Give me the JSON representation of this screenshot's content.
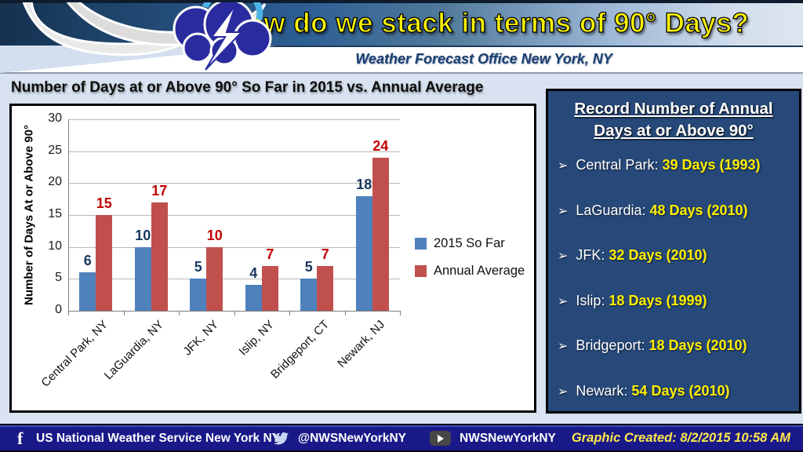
{
  "header": {
    "title": "How do we stack in terms of 90° Days?",
    "subtitle": "Weather Forecast Office New York, NY"
  },
  "chart_data": {
    "type": "bar",
    "title": "Number of Days at or Above 90° So Far in 2015 vs. Annual Average",
    "categories": [
      "Central Park, NY",
      "LaGuardia, NY",
      "JFK, NY",
      "Islip, NY",
      "Bridgeport, CT",
      "Newark, NJ"
    ],
    "series": [
      {
        "name": "2015 So Far",
        "color": "#4f81bd",
        "label_color": "#17375e",
        "values": [
          6,
          10,
          5,
          4,
          5,
          18
        ]
      },
      {
        "name": "Annual Average",
        "color": "#c0504d",
        "label_color": "#c00000",
        "values": [
          15,
          17,
          10,
          7,
          7,
          24
        ]
      }
    ],
    "xlabel": "",
    "ylabel": "Number of Days At or Above 90°",
    "ylim": [
      0,
      30
    ],
    "ytick_step": 5,
    "grid": true,
    "legend_position": "right"
  },
  "record_panel": {
    "title": "Record Number of Annual Days at or Above 90°",
    "bullet": "➢",
    "items": [
      {
        "location": "Central Park:",
        "value": "39 Days (1993)"
      },
      {
        "location": "LaGuardia:",
        "value": "48 Days (2010)"
      },
      {
        "location": "JFK:",
        "value": "32 Days (2010)"
      },
      {
        "location": "Islip:",
        "value": "18 Days (1999)"
      },
      {
        "location": "Bridgeport:",
        "value": "18 Days (2010)"
      },
      {
        "location": "Newark:",
        "value": "54 Days (2010)"
      }
    ]
  },
  "footer": {
    "facebook_label": "US National Weather Service New York NY",
    "twitter_label": "@NWSNewYorkNY",
    "youtube_label": "NWSNewYorkNY",
    "created_label": "Graphic Created: 8/2/2015 10:58 AM"
  },
  "colors": {
    "body_bg": "#d8e2f0",
    "panel_bg": "#27497a",
    "footer_bg": "#191989",
    "accent_yellow": "#fdf403",
    "series_blue": "#4f81bd",
    "series_red": "#c0504d"
  }
}
